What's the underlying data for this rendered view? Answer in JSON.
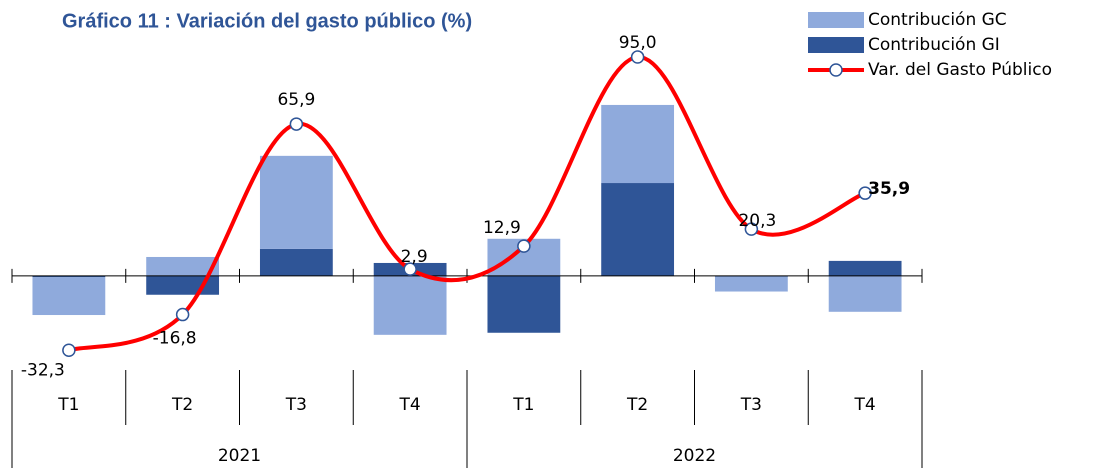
{
  "chart_data": {
    "type": "bar_line",
    "title": "Gráfico 11 : Variación del gasto público (%)",
    "categories": [
      "T1",
      "T2",
      "T3",
      "T4",
      "T1",
      "T2",
      "T3",
      "T4"
    ],
    "category_groups": [
      "2021",
      "2022"
    ],
    "series": [
      {
        "name": "Contribución GC",
        "color": "#8faadc",
        "type": "bar",
        "values": [
          -16.5,
          8.2,
          40.4,
          -25.6,
          16.1,
          33.9,
          -6.5,
          -15.6
        ]
      },
      {
        "name": "Contribución GI",
        "color": "#2f5597",
        "type": "bar",
        "values": [
          -0.5,
          -8.2,
          11.7,
          5.6,
          -24.7,
          40.3,
          -0.3,
          6.5
        ]
      },
      {
        "name": "Var. del Gasto Público",
        "color": "#ff0000",
        "type": "line",
        "values": [
          -32.3,
          -16.8,
          65.9,
          2.9,
          12.9,
          95.0,
          20.3,
          35.9
        ],
        "value_labels": [
          "-32,3",
          "-16,8",
          "65,9",
          "2,9",
          "12,9",
          "95,0",
          "20,3",
          "35,9"
        ]
      }
    ],
    "ylim": [
      -40,
      105
    ]
  }
}
